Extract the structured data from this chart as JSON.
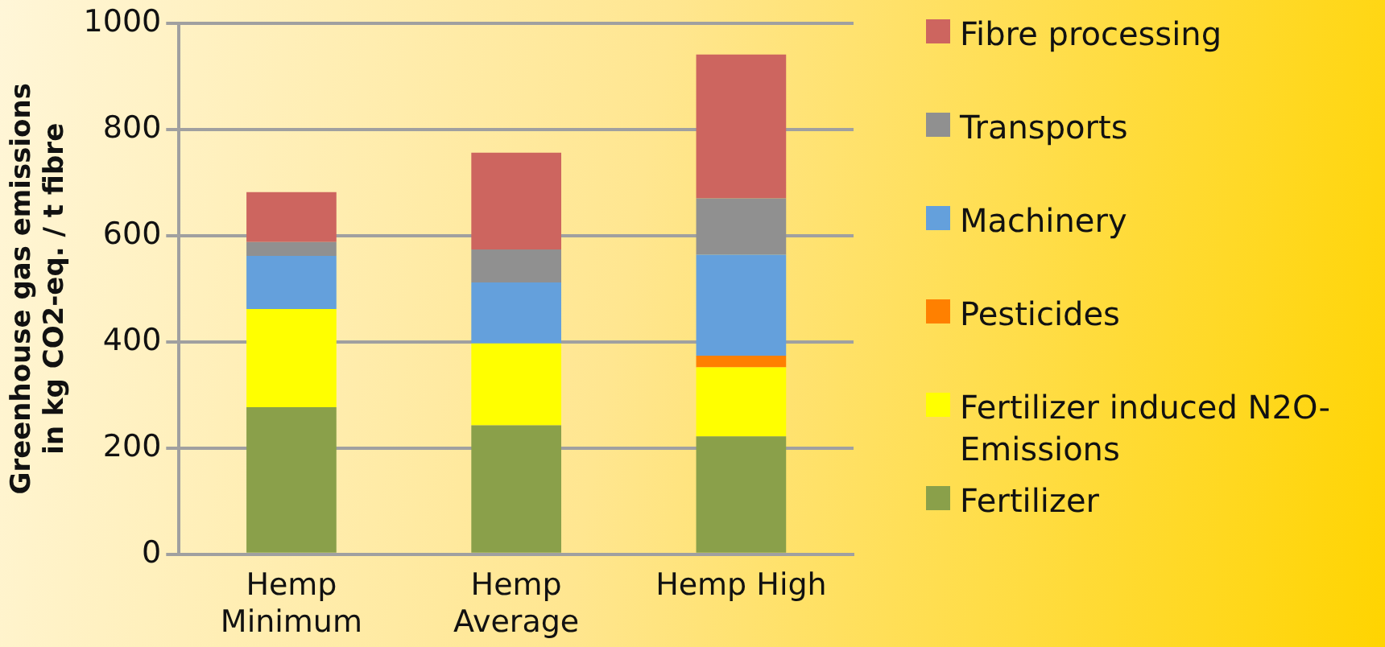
{
  "chart_data": {
    "type": "bar",
    "stacked": true,
    "ylabel": "Greenhouse gas emissions in kg CO2-eq. / t fibre",
    "categories": [
      "Hemp Minimum",
      "Hemp Average",
      "Hemp High"
    ],
    "series": [
      {
        "name": "Fertilizer",
        "color": "#8aa04a",
        "values": [
          277,
          243,
          222
        ]
      },
      {
        "name": "Fertilizer induced N2O-Emissions",
        "color": "#ffff00",
        "values": [
          185,
          154,
          130
        ]
      },
      {
        "name": "Pesticides",
        "color": "#ff8000",
        "values": [
          0,
          0,
          22
        ]
      },
      {
        "name": "Machinery",
        "color": "#64a0dc",
        "values": [
          100,
          115,
          190
        ]
      },
      {
        "name": "Transports",
        "color": "#909090",
        "values": [
          26,
          62,
          106
        ]
      },
      {
        "name": "Fibre processing",
        "color": "#cd655f",
        "values": [
          94,
          182,
          271
        ]
      }
    ],
    "ylim": [
      0,
      1000
    ],
    "yticks": [
      0,
      200,
      400,
      600,
      800,
      1000
    ],
    "grid": "y",
    "legend": "right"
  }
}
